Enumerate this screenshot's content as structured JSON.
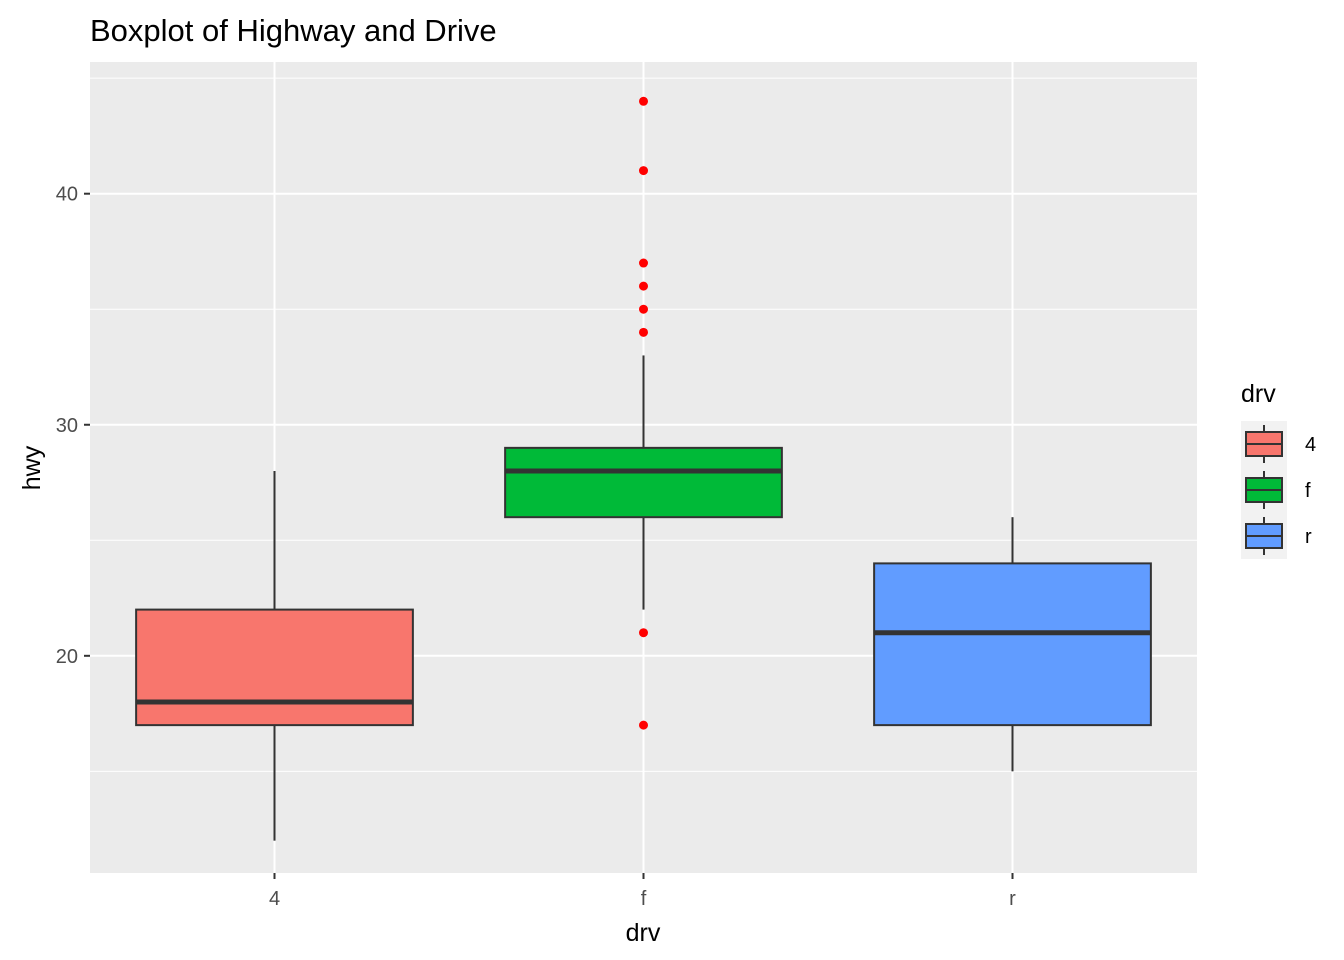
{
  "chart_data": {
    "type": "boxplot",
    "title": "Boxplot of Highway and Drive",
    "xlabel": "drv",
    "ylabel": "hwy",
    "ylim": [
      10.6,
      45.7
    ],
    "y_ticks": [
      20,
      30,
      40
    ],
    "y_tick_labels": [
      "20",
      "30",
      "40"
    ],
    "grid": true,
    "legend": {
      "title": "drv",
      "position": "right"
    },
    "outlier_color": "#ff0000",
    "series": [
      {
        "name": "4",
        "label": "4",
        "color": "#f8766d",
        "min": 12,
        "q1": 17,
        "median": 18,
        "q3": 22,
        "max": 28,
        "outliers": []
      },
      {
        "name": "f",
        "label": "f",
        "color": "#00ba38",
        "min": 22,
        "q1": 26,
        "median": 28,
        "q3": 29,
        "max": 33,
        "outliers": [
          44,
          41,
          37,
          36,
          35,
          34,
          21,
          17
        ]
      },
      {
        "name": "r",
        "label": "r",
        "color": "#619cff",
        "min": 15,
        "q1": 17,
        "median": 21,
        "q3": 24,
        "max": 26,
        "outliers": []
      }
    ]
  }
}
